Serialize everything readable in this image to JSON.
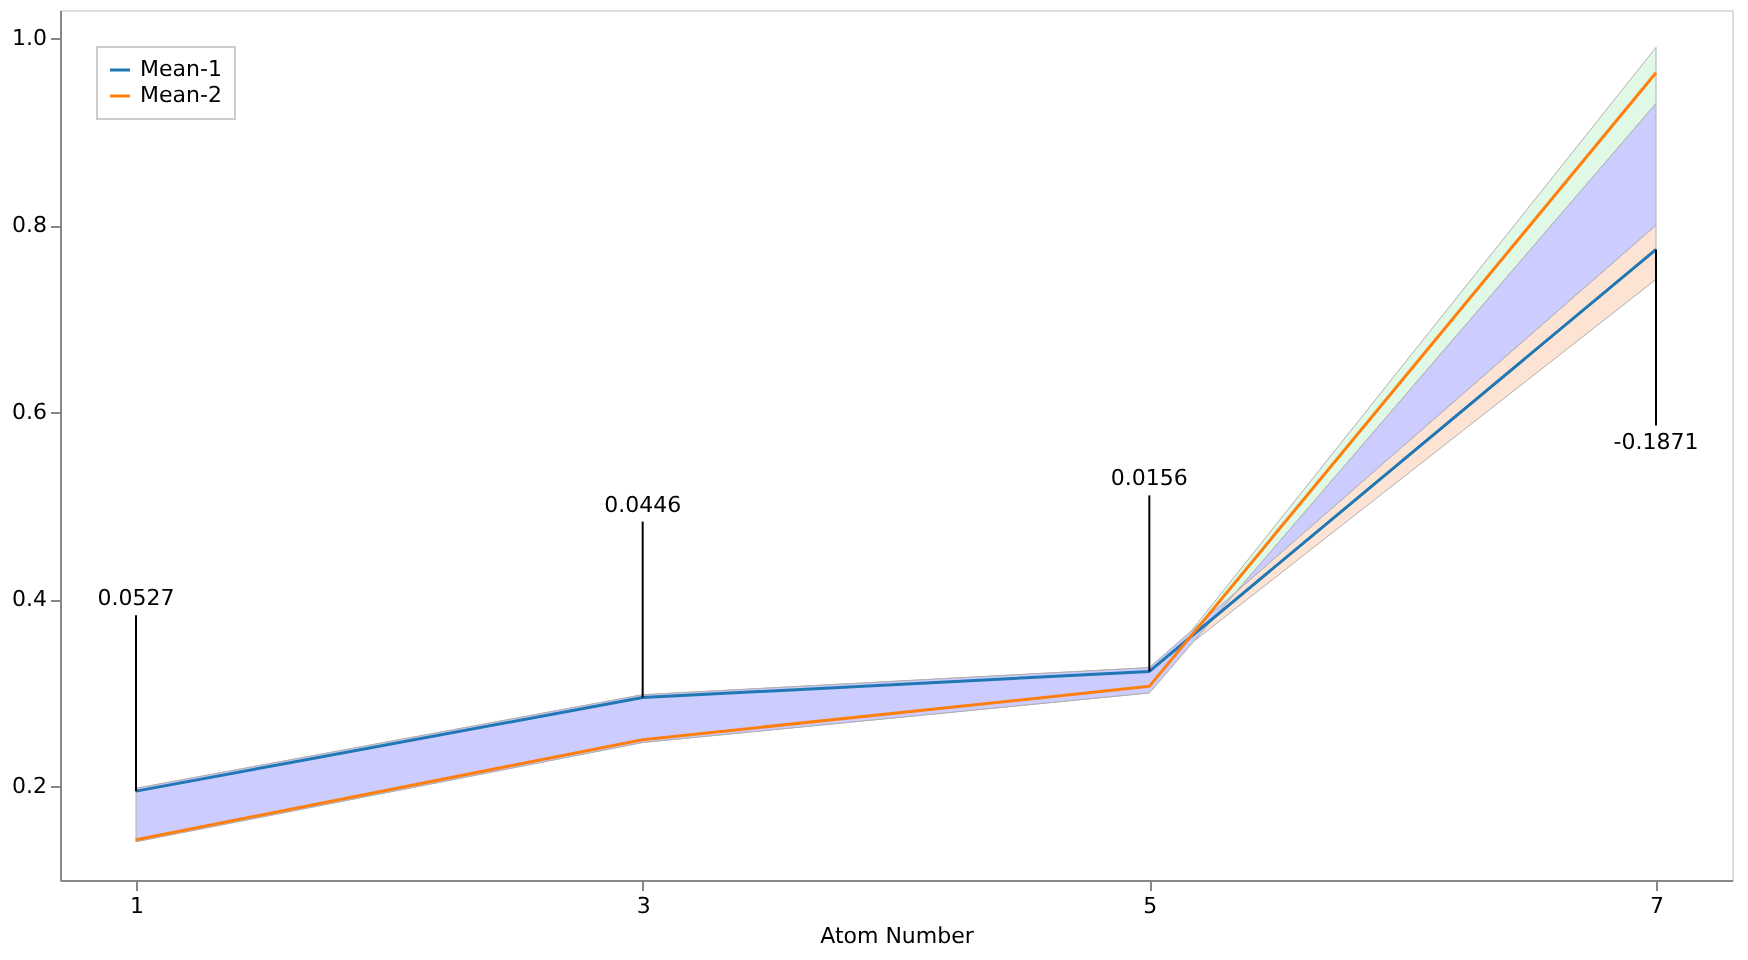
{
  "chart_data": {
    "type": "line",
    "xlabel": "Atom Number",
    "x": [
      1,
      3,
      5,
      7
    ],
    "series": [
      {
        "color": "#fde3d3",
        "values": [
          null,
          null,
          null,
          null
        ],
        "lower": [
          0.193,
          0.292,
          0.318,
          0.742
        ],
        "upper": [
          0.198,
          0.298,
          0.327,
          0.8
        ]
      },
      {
        "color": "#e0f8e6",
        "values": [
          null,
          null,
          null,
          null
        ],
        "lower": [
          0.141,
          0.247,
          0.3,
          0.93
        ],
        "upper": [
          0.145,
          0.253,
          0.31,
          0.99
        ]
      },
      {
        "color": "#ccccff",
        "values": [
          null,
          null,
          null,
          null
        ],
        "lower": [
          0.141,
          0.247,
          0.3,
          0.93
        ],
        "upper": [
          0.198,
          0.298,
          0.327,
          0.8
        ]
      },
      {
        "name": "Mean-1",
        "color": "#1f77b4",
        "values": [
          0.195,
          0.295,
          0.323,
          0.774
        ]
      },
      {
        "name": "Mean-2",
        "color": "#ff7f0e",
        "values": [
          0.143,
          0.25,
          0.307,
          0.963
        ]
      }
    ],
    "annotations": [
      {
        "text": "0.0527",
        "x": 1,
        "y": 0.195
      },
      {
        "text": "0.0446",
        "x": 3,
        "y": 0.295
      },
      {
        "text": "0.0156",
        "x": 5,
        "y": 0.323
      },
      {
        "text": "-0.1871",
        "x": 7,
        "y": 0.774
      }
    ],
    "xlim": [
      0.7,
      7.3
    ],
    "ylim": [
      0.1,
      1.03
    ],
    "xticks": [
      1,
      3,
      5,
      7
    ],
    "yticks": [
      0.2,
      0.4,
      0.6,
      0.8,
      {
        "value": 1.0,
        "label": "1.0"
      }
    ],
    "grid": false,
    "legend": "top left"
  }
}
